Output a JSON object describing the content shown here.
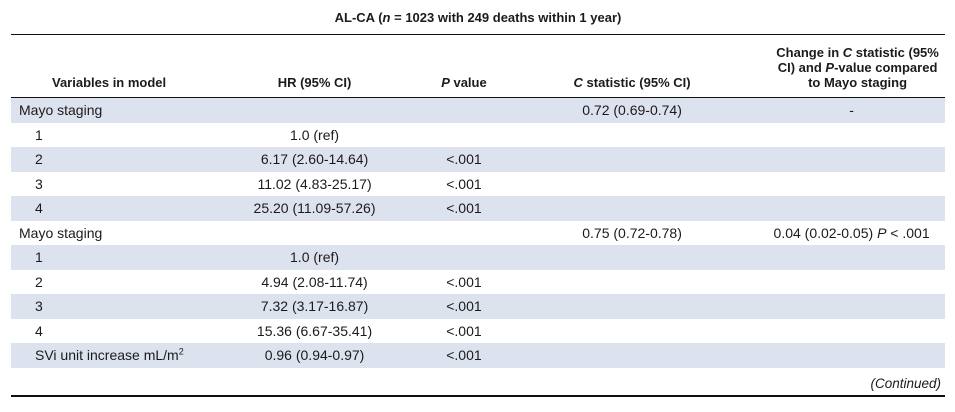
{
  "title": {
    "prefix": "AL-CA (",
    "n_italic": "n",
    "suffix": " = 1023 with 249 deaths within 1 year)"
  },
  "colors": {
    "row_shade": "#dde2ef",
    "rule": "#111111",
    "text": "#1b1b1b"
  },
  "table": {
    "columns": [
      {
        "key": "variables",
        "segments": [
          {
            "t": "Variables in model"
          }
        ]
      },
      {
        "key": "hr",
        "segments": [
          {
            "t": "HR (95% CI)"
          }
        ]
      },
      {
        "key": "pvalue",
        "segments": [
          {
            "t": "P",
            "i": true
          },
          {
            "t": " value"
          }
        ]
      },
      {
        "key": "cstat",
        "segments": [
          {
            "t": "C",
            "i": true
          },
          {
            "t": " statistic (95% CI)"
          }
        ]
      },
      {
        "key": "change",
        "segments": [
          {
            "t": "Change in "
          },
          {
            "t": "C",
            "i": true
          },
          {
            "t": " statistic (95% CI) and "
          },
          {
            "t": "P",
            "i": true
          },
          {
            "t": "-value compared to Mayo staging"
          }
        ]
      }
    ],
    "rows": [
      {
        "indent": 0,
        "shaded": true,
        "cells": [
          [
            {
              "t": "Mayo staging"
            }
          ],
          [],
          [],
          [
            {
              "t": "0.72 (0.69-0.74)"
            }
          ],
          [
            {
              "t": "-"
            }
          ]
        ]
      },
      {
        "indent": 1,
        "shaded": false,
        "cells": [
          [
            {
              "t": "1"
            }
          ],
          [
            {
              "t": "1.0 (ref)"
            }
          ],
          [],
          [],
          []
        ]
      },
      {
        "indent": 1,
        "shaded": true,
        "cells": [
          [
            {
              "t": "2"
            }
          ],
          [
            {
              "t": "6.17 (2.60-14.64)"
            }
          ],
          [
            {
              "t": "<.001"
            }
          ],
          [],
          []
        ]
      },
      {
        "indent": 1,
        "shaded": false,
        "cells": [
          [
            {
              "t": "3"
            }
          ],
          [
            {
              "t": "11.02 (4.83-25.17)"
            }
          ],
          [
            {
              "t": "<.001"
            }
          ],
          [],
          []
        ]
      },
      {
        "indent": 1,
        "shaded": true,
        "cells": [
          [
            {
              "t": "4"
            }
          ],
          [
            {
              "t": "25.20 (11.09-57.26)"
            }
          ],
          [
            {
              "t": "<.001"
            }
          ],
          [],
          []
        ]
      },
      {
        "indent": 0,
        "shaded": false,
        "cells": [
          [
            {
              "t": "Mayo staging"
            }
          ],
          [],
          [],
          [
            {
              "t": "0.75 (0.72-0.78)"
            }
          ],
          [
            {
              "t": "0.04 (0.02-0.05) "
            },
            {
              "t": "P",
              "i": true
            },
            {
              "t": " < .001"
            }
          ]
        ]
      },
      {
        "indent": 1,
        "shaded": true,
        "cells": [
          [
            {
              "t": "1"
            }
          ],
          [
            {
              "t": "1.0 (ref)"
            }
          ],
          [],
          [],
          []
        ]
      },
      {
        "indent": 1,
        "shaded": false,
        "cells": [
          [
            {
              "t": "2"
            }
          ],
          [
            {
              "t": "4.94 (2.08-11.74)"
            }
          ],
          [
            {
              "t": "<.001"
            }
          ],
          [],
          []
        ]
      },
      {
        "indent": 1,
        "shaded": true,
        "cells": [
          [
            {
              "t": "3"
            }
          ],
          [
            {
              "t": "7.32 (3.17-16.87)"
            }
          ],
          [
            {
              "t": "<.001"
            }
          ],
          [],
          []
        ]
      },
      {
        "indent": 1,
        "shaded": false,
        "cells": [
          [
            {
              "t": "4"
            }
          ],
          [
            {
              "t": "15.36 (6.67-35.41)"
            }
          ],
          [
            {
              "t": "<.001"
            }
          ],
          [],
          []
        ]
      },
      {
        "indent": 1,
        "shaded": true,
        "cells": [
          [
            {
              "t": "SVi unit increase mL/m"
            },
            {
              "t": "2",
              "sup": true
            }
          ],
          [
            {
              "t": "0.96 (0.94-0.97)"
            }
          ],
          [
            {
              "t": "<.001"
            }
          ],
          [],
          []
        ]
      }
    ]
  },
  "footer": {
    "continued": "(Continued)"
  }
}
